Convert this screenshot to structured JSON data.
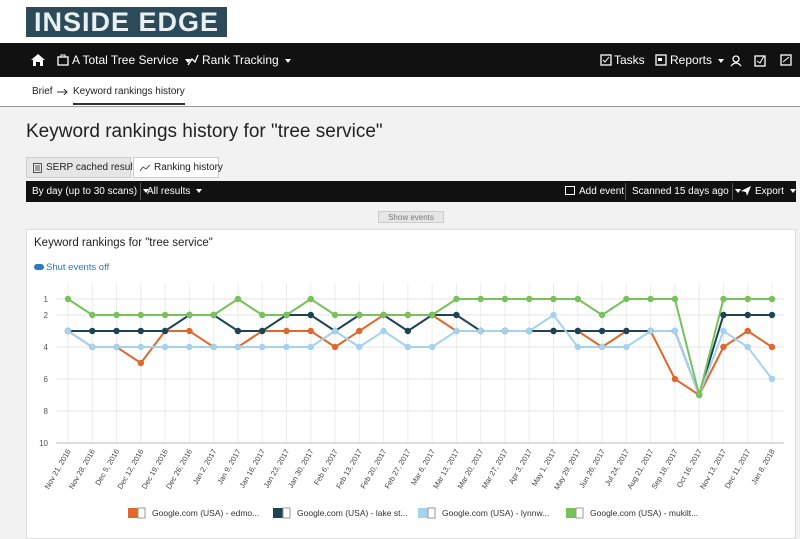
{
  "header": {
    "logo": "INSIDE EDGE",
    "project": "A Total Tree Service",
    "module": "Rank Tracking",
    "tasks": "Tasks",
    "reports": "Reports"
  },
  "breadcrumb": [
    "Brief",
    "Keyword rankings history"
  ],
  "page": {
    "title": "Keyword rankings history for \"tree service\"",
    "tabs": [
      "SERP cached results",
      "Ranking history"
    ],
    "toolbar": {
      "period": "By day (up to 30 scans)",
      "filter": "All results",
      "add_event": "Add event",
      "scanned": "Scanned 15 days ago",
      "export": "Export"
    },
    "show_events": "Show events",
    "events_toggle": "Shut events off"
  },
  "chart_data": {
    "type": "line",
    "title": "Keyword rankings for \"tree service\"",
    "categories": [
      "Nov 21, 2016",
      "Nov 28, 2016",
      "Dec 5, 2016",
      "Dec 12, 2016",
      "Dec 19, 2016",
      "Dec 26, 2016",
      "Jan 2, 2017",
      "Jan 9, 2017",
      "Jan 16, 2017",
      "Jan 23, 2017",
      "Jan 30, 2017",
      "Feb 6, 2017",
      "Feb 13, 2017",
      "Feb 20, 2017",
      "Feb 27, 2017",
      "Mar 6, 2017",
      "Mar 13, 2017",
      "Mar 20, 2017",
      "Mar 27, 2017",
      "Apr 3, 2017",
      "May 1, 2017",
      "May 29, 2017",
      "Jun 26, 2017",
      "Jul 24, 2017",
      "Aug 21, 2017",
      "Sep 18, 2017",
      "Oct 16, 2017",
      "Nov 13, 2017",
      "Dec 11, 2017",
      "Jan 8, 2018"
    ],
    "series": [
      {
        "name": "Google.com (USA) - edmo...",
        "color": "#e0682c",
        "values": [
          3,
          4,
          4,
          5,
          3,
          3,
          4,
          4,
          3,
          3,
          3,
          4,
          3,
          2,
          2,
          2,
          3,
          3,
          3,
          3,
          3,
          3,
          4,
          3,
          3,
          6,
          7,
          4,
          3,
          4
        ]
      },
      {
        "name": "Google.com (USA) - lake st...",
        "color": "#1d4454",
        "values": [
          3,
          3,
          3,
          3,
          3,
          2,
          2,
          3,
          3,
          2,
          2,
          3,
          2,
          2,
          3,
          2,
          2,
          3,
          3,
          3,
          3,
          3,
          3,
          3,
          3,
          3,
          7,
          2,
          2,
          2
        ]
      },
      {
        "name": "Google.com (USA) - lynnw...",
        "color": "#a4d3ee",
        "values": [
          3,
          4,
          4,
          4,
          4,
          4,
          4,
          4,
          4,
          4,
          4,
          3,
          4,
          3,
          4,
          4,
          3,
          3,
          3,
          3,
          2,
          4,
          4,
          4,
          3,
          3,
          7,
          3,
          4,
          6
        ]
      },
      {
        "name": "Google.com (USA) - mukilt...",
        "color": "#78c25a",
        "values": [
          1,
          2,
          2,
          2,
          2,
          2,
          2,
          1,
          2,
          2,
          1,
          2,
          2,
          2,
          2,
          2,
          1,
          1,
          1,
          1,
          1,
          1,
          2,
          1,
          1,
          1,
          7,
          1,
          1,
          1
        ]
      }
    ],
    "ylim": [
      1,
      10
    ],
    "yticks": [
      1,
      2,
      4,
      6,
      8,
      10
    ],
    "y_inverted": true,
    "grid": true
  }
}
